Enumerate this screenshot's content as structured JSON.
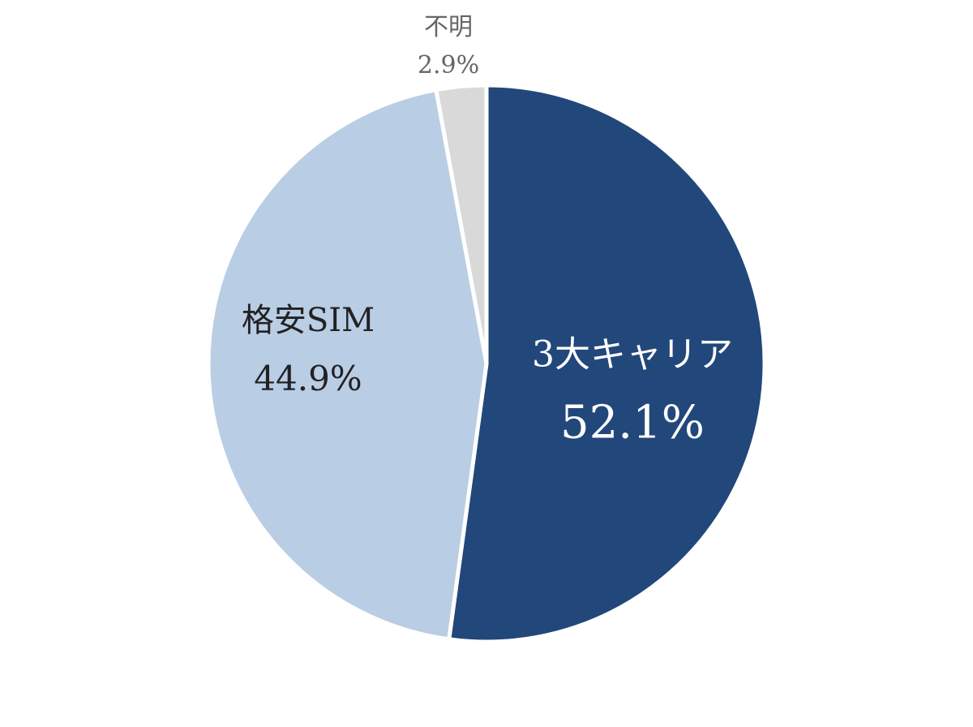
{
  "chart_data": {
    "type": "pie",
    "categories": [
      "3大キャリア",
      "格安SIM",
      "不明"
    ],
    "values": [
      52.1,
      44.9,
      2.9
    ],
    "value_labels": [
      "52.1%",
      "44.9%",
      "2.9%"
    ],
    "colors": [
      "#22477a",
      "#b9cde5",
      "#d9d9d9"
    ]
  }
}
